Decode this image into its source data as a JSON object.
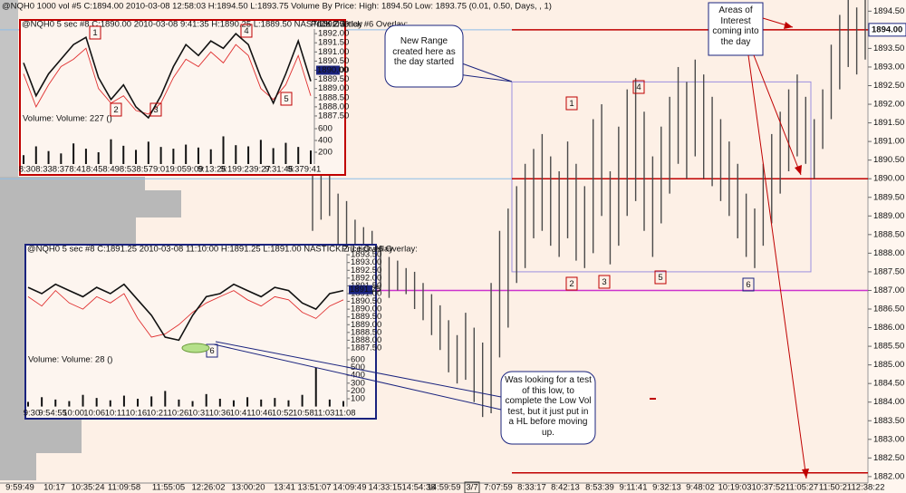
{
  "chart_data": [
    {
      "type": "range_bar",
      "title": "@NQH0  1000 vol  #5  C:1894.00  2010-03-08  12:58:03  H:1894.50  L:1893.75  Volume By Price:  High: 1894.50  Low: 1893.75  (0.01, 0.50, Days, , 1)",
      "ylim": [
        1881.9,
        1894.8
      ],
      "yticks": [
        {
          "value": 1882,
          "label": "1882.00"
        },
        {
          "value": 1882.5,
          "label": "1882.50"
        },
        {
          "value": 1883,
          "label": "1883.00"
        },
        {
          "value": 1883.5,
          "label": "1883.50"
        },
        {
          "value": 1884,
          "label": "1884.00"
        },
        {
          "value": 1884.5,
          "label": "1884.50"
        },
        {
          "value": 1885,
          "label": "1885.00"
        },
        {
          "value": 1885.5,
          "label": "1885.50"
        },
        {
          "value": 1886,
          "label": "1886.00"
        },
        {
          "value": 1886.5,
          "label": "1886.50"
        },
        {
          "value": 1887,
          "label": "1887.00"
        },
        {
          "value": 1887.5,
          "label": "1887.50"
        },
        {
          "value": 1888,
          "label": "1888.00"
        },
        {
          "value": 1888.5,
          "label": "1888.50"
        },
        {
          "value": 1889,
          "label": "1889.00"
        },
        {
          "value": 1889.5,
          "label": "1889.50"
        },
        {
          "value": 1890,
          "label": "1890.00"
        },
        {
          "value": 1890.5,
          "label": "1890.50"
        },
        {
          "value": 1891,
          "label": "1891.00"
        },
        {
          "value": 1891.5,
          "label": "1891.50"
        },
        {
          "value": 1892,
          "label": "1892.00"
        },
        {
          "value": 1892.5,
          "label": "1892.50"
        },
        {
          "value": 1893,
          "label": "1893.00"
        },
        {
          "value": 1893.5,
          "label": "1893.50"
        },
        {
          "value": 1894,
          "label": "1894.00"
        },
        {
          "value": 1894.5,
          "label": "1894.50"
        }
      ],
      "last": {
        "value": 1894,
        "label": "1894.00"
      },
      "x_labels": [
        "9:59:49",
        "10:17",
        "10:35:24",
        "11:09:58",
        "11:55:05",
        "12:26:02",
        "13:00:20",
        "13:41",
        "13:51:07",
        "14:09:49",
        "14:33:15",
        "14:54:38",
        "14:59:59",
        "3/7",
        "7:07:59",
        "8:33:17",
        "8:42:13",
        "8:53:39",
        "9:11:41",
        "9:32:13",
        "9:48:02",
        "10:19:03",
        "10:37:52",
        "11:05:27",
        "11:50:21",
        "12:38:22"
      ],
      "lows": [
        1888.6,
        1888.9,
        1889.0,
        1888.2,
        1887.8,
        1887.6,
        1887.2,
        1887.4,
        1887.0,
        1886.8,
        1887.0,
        1886.9,
        1886.5,
        1886.2,
        1885.8,
        1885.4,
        1884.8,
        1884.5,
        1884.6,
        1884.0,
        1883.6,
        1883.7,
        1885.2,
        1886.0,
        1887.2,
        1887.6,
        1888.4,
        1888.6,
        1888.2,
        1887.9,
        1888.4,
        1887.8,
        1887.6,
        1888.0,
        1889.0,
        1887.7,
        1888.2,
        1889.0,
        1889.4,
        1888.6,
        1887.9,
        1888.8,
        1889.6,
        1890.4,
        1890.0,
        1890.6,
        1890.0,
        1889.8,
        1889.4,
        1889.0,
        1888.4,
        1887.9,
        1887.6,
        1888.2,
        1888.8,
        1889.6,
        1890.2,
        1890.6,
        1890.4,
        1890.0,
        1890.8,
        1891.6,
        1892.4,
        1893.0,
        1892.8,
        1893.2
      ],
      "highs": [
        1890.3,
        1890.6,
        1890.2,
        1889.6,
        1889.4,
        1888.9,
        1888.7,
        1888.6,
        1888.2,
        1887.9,
        1887.8,
        1887.6,
        1887.5,
        1887.2,
        1886.9,
        1886.6,
        1886.2,
        1885.8,
        1886.4,
        1886.0,
        1885.6,
        1887.2,
        1888.6,
        1889.2,
        1889.8,
        1890.4,
        1890.8,
        1891.2,
        1890.6,
        1890.2,
        1891.0,
        1890.4,
        1889.8,
        1891.6,
        1892.0,
        1890.2,
        1891.4,
        1892.4,
        1892.7,
        1891.8,
        1890.6,
        1891.4,
        1892.2,
        1893.0,
        1892.6,
        1893.2,
        1892.8,
        1892.2,
        1891.6,
        1891.0,
        1890.4,
        1889.6,
        1889.2,
        1890.4,
        1891.2,
        1891.8,
        1892.4,
        1892.8,
        1892.2,
        1891.6,
        1892.4,
        1893.6,
        1894.4,
        1894.8,
        1894.6,
        1894.8
      ],
      "bar_color": "#4a4a4a",
      "levels": [
        {
          "value": 1894,
          "color": "#c00000"
        },
        {
          "value": 1890,
          "color": "#c00000"
        },
        {
          "value": 1887,
          "color": "#cc33cc"
        },
        {
          "value": 1882.1,
          "color": "#c00000"
        }
      ],
      "reference_color": "#8cbde8",
      "range": [
        1887.5,
        1892.6
      ],
      "range_color": "#9b8fe0",
      "markers": [
        "1",
        "4",
        "2",
        "3",
        "5",
        "6"
      ],
      "callouts": [
        "New Range created here as the day started",
        "Areas of Interest coming into the day",
        "Was looking for a test of this low, to complete the Low Vol test, but it just put in  a HL before moving up."
      ]
    },
    {
      "type": "inset",
      "title": "@NQH0  5 sec   #8  C:1890.00  2010-03-08  9:41:35  H:1890.25  L:1889.50  NASTICK.Z  1 tick  #6 Overlay:",
      "overlay_label": "Price Overlay",
      "border_color": "#c00000",
      "ylim": [
        1887.2,
        1892.7
      ],
      "yticks": [
        {
          "value": 1887.5,
          "label": "1887.50"
        },
        {
          "value": 1888,
          "label": "1888.00"
        },
        {
          "value": 1888.5,
          "label": "1888.50"
        },
        {
          "value": 1889,
          "label": "1889.00"
        },
        {
          "value": 1889.5,
          "label": "1889.50"
        },
        {
          "value": 1890,
          "label": "1890.00"
        },
        {
          "value": 1890.5,
          "label": "1890.50"
        },
        {
          "value": 1891,
          "label": "1891.00"
        },
        {
          "value": 1891.5,
          "label": "1891.50"
        },
        {
          "value": 1892,
          "label": "1892.00"
        },
        {
          "value": 1892.5,
          "label": "1892.50"
        }
      ],
      "last": {
        "value": 1890,
        "label": "1890.00"
      },
      "close": [
        1890.4,
        1888.6,
        1889.8,
        1890.6,
        1891.4,
        1891.8,
        1889.6,
        1888.4,
        1889.2,
        1888.0,
        1887.4,
        1888.6,
        1890.2,
        1891.4,
        1890.8,
        1891.6,
        1891.2,
        1892.0,
        1891.4,
        1889.6,
        1888.2,
        1889.8,
        1891.6,
        1889.4
      ],
      "overlay": [
        1889.8,
        1888.0,
        1889.2,
        1890.2,
        1890.6,
        1891.2,
        1889.0,
        1888.2,
        1888.6,
        1887.8,
        1887.6,
        1888.2,
        1889.6,
        1890.6,
        1890.2,
        1891.0,
        1890.4,
        1891.4,
        1890.8,
        1889.0,
        1888.4,
        1889.2,
        1890.8,
        1888.6
      ],
      "close_color": "#111111",
      "overlay_color": "#e03030",
      "volume_label": "Volume:  Volume: 227  ()",
      "volume": [
        150,
        300,
        220,
        180,
        350,
        260,
        200,
        420,
        310,
        240,
        380,
        290,
        260,
        330,
        280,
        250,
        470,
        320,
        300,
        410,
        270,
        360,
        290,
        230
      ],
      "volume_color": "#111111",
      "vlim": [
        0,
        650
      ],
      "vticks": [
        600,
        400,
        200
      ],
      "x_labels": [
        "8:30",
        "8:33",
        "8:37",
        "8:41",
        "8:45",
        "8:49",
        "8:53",
        "8:57",
        "9:01",
        "9:05",
        "9:09",
        "9:13:25",
        "9:19",
        "9:23",
        "9:27",
        "9:31:45",
        "9:37",
        "9:41"
      ],
      "markers": [
        "1",
        "4",
        "2",
        "3",
        "5"
      ]
    },
    {
      "type": "inset",
      "title": "@NQH0  5 sec   #8  C:1891.25  2010-03-08  11:10:00  H:1891.25  L:1891.00  NASTICK.Z  1 tick  #6 Overlay:",
      "overlay_label": "Price Overlay",
      "border_color": "#1a237e",
      "ylim": [
        1887.3,
        1893.8
      ],
      "yticks": [
        {
          "value": 1887.5,
          "label": "1887.50"
        },
        {
          "value": 1888,
          "label": "1888.00"
        },
        {
          "value": 1888.5,
          "label": "1888.50"
        },
        {
          "value": 1889,
          "label": "1889.00"
        },
        {
          "value": 1889.5,
          "label": "1889.50"
        },
        {
          "value": 1890,
          "label": "1890.00"
        },
        {
          "value": 1890.5,
          "label": "1890.50"
        },
        {
          "value": 1891,
          "label": "1891.00"
        },
        {
          "value": 1891.5,
          "label": "1891.50"
        },
        {
          "value": 1892,
          "label": "1892.00"
        },
        {
          "value": 1892.5,
          "label": "1892.50"
        },
        {
          "value": 1893,
          "label": "1893.00"
        },
        {
          "value": 1893.5,
          "label": "1893.50"
        }
      ],
      "last": {
        "value": 1891.25,
        "label": "1891.25"
      },
      "close": [
        1891.4,
        1891.0,
        1891.6,
        1891.2,
        1890.8,
        1891.4,
        1891.0,
        1891.6,
        1890.6,
        1889.6,
        1888.2,
        1888.0,
        1889.6,
        1890.8,
        1891.0,
        1891.6,
        1891.2,
        1890.8,
        1891.4,
        1891.2,
        1890.4,
        1890.0,
        1891.0,
        1891.2
      ],
      "overlay": [
        1890.8,
        1890.2,
        1891.2,
        1890.4,
        1890.0,
        1890.8,
        1890.4,
        1891.0,
        1889.4,
        1888.2,
        1888.4,
        1889.0,
        1889.8,
        1890.4,
        1890.8,
        1891.2,
        1890.6,
        1890.2,
        1890.8,
        1890.6,
        1889.8,
        1889.4,
        1890.2,
        1890.6
      ],
      "close_color": "#111111",
      "overlay_color": "#e03030",
      "volume_label": "Volume:  Volume: 28  ()",
      "volume": [
        60,
        120,
        90,
        70,
        150,
        110,
        80,
        140,
        100,
        130,
        200,
        90,
        70,
        160,
        100,
        80,
        120,
        90,
        110,
        80,
        150,
        500,
        90,
        70
      ],
      "volume_color": "#111111",
      "vlim": [
        0,
        650
      ],
      "vticks": [
        600,
        500,
        400,
        300,
        200,
        100
      ],
      "x_labels": [
        "9:30",
        "9:54:55",
        "10:00",
        "10:06",
        "10:11",
        "10:16",
        "10:21",
        "10:26",
        "10:31",
        "10:36",
        "10:41",
        "10:46",
        "10:52",
        "10:58",
        "11:03",
        "11:08"
      ],
      "markers": [
        "6"
      ]
    }
  ]
}
